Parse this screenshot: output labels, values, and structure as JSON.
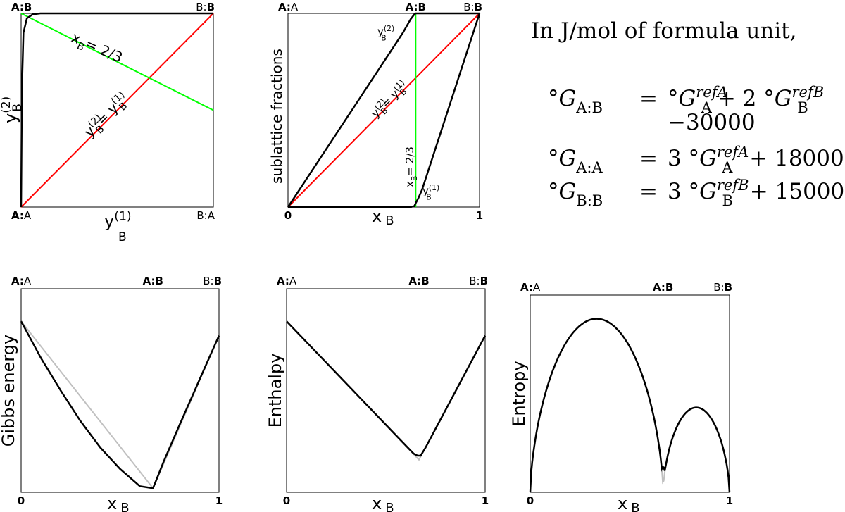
{
  "chart_data": [
    {
      "id": "site-fraction-square",
      "type": "line",
      "corner_labels": {
        "top_left": {
          "bold": "A:B",
          "normal": ""
        },
        "top_right": {
          "bold": "",
          "normal": "B:",
          "bold2": "B"
        },
        "bottom_left": {
          "bold": "A:",
          "normal": "A"
        },
        "bottom_right": {
          "bold": "",
          "normal": "B:A"
        }
      },
      "xlabel": {
        "main": "y",
        "sup": "(1)",
        "sub": "B"
      },
      "ylabel": {
        "main": "y",
        "sup": "(2)",
        "sub": "B"
      },
      "xlim": [
        0,
        1
      ],
      "ylim": [
        0,
        1
      ],
      "series": [
        {
          "color": "#ff0000",
          "x": [
            0,
            1
          ],
          "y": [
            0,
            1
          ],
          "label": {
            "main": "y",
            "sup1": "(2)",
            "sub1": "B",
            "eq": "= y",
            "sup2": "(1)",
            "sub2": "B"
          }
        },
        {
          "color": "#00ff00",
          "x": [
            0,
            1
          ],
          "y": [
            1,
            0.5
          ],
          "label": {
            "main": "x",
            "sub": "B",
            "eq": "= 2/3"
          }
        },
        {
          "color": "#000000",
          "x": [
            0,
            0.004,
            0.012,
            0.03,
            0.06,
            0.1,
            1
          ],
          "y": [
            0,
            0.6,
            0.9,
            0.975,
            0.995,
            1,
            1
          ]
        }
      ]
    },
    {
      "id": "sublattice-fractions",
      "type": "line",
      "top_labels": [
        {
          "x": 0,
          "bold": "A:",
          "normal": "A"
        },
        {
          "x": 0.6667,
          "bold": "A:B",
          "normal": ""
        },
        {
          "x": 1,
          "normal": "B:",
          "bold": "B"
        }
      ],
      "ylabel": "sublattice fractions",
      "xlabel": {
        "main": "x",
        "sub": "B"
      },
      "xticks": [
        "0",
        "1"
      ],
      "xlim": [
        0,
        1
      ],
      "ylim": [
        0,
        1
      ],
      "series": [
        {
          "color": "#ff0000",
          "x": [
            0,
            1
          ],
          "y": [
            0,
            1
          ],
          "label": {
            "main": "y",
            "sup1": "(2)",
            "sub1": "B",
            "eq": "= y",
            "sup2": "(1)",
            "sub2": "B"
          }
        },
        {
          "color": "#00ff00",
          "x": [
            0.6667,
            0.6667
          ],
          "y": [
            0,
            1
          ],
          "label": {
            "main": "x",
            "sub": "B",
            "eq": "= 2/3"
          }
        },
        {
          "color": "#000000",
          "name": {
            "main": "y",
            "sup": "(2)",
            "sub": "B"
          },
          "x": [
            0,
            0.6,
            0.64,
            0.66,
            0.6667,
            0.68,
            0.72,
            1
          ],
          "y": [
            0,
            0.9,
            0.97,
            0.995,
            1,
            1,
            1,
            1
          ]
        },
        {
          "color": "#000000",
          "name": {
            "main": "y",
            "sup": "(1)",
            "sub": "B"
          },
          "x": [
            0,
            0.6,
            0.64,
            0.66,
            0.6667,
            0.68,
            0.7,
            1
          ],
          "y": [
            0,
            0,
            0,
            0.005,
            0.02,
            0.045,
            0.09,
            1
          ]
        }
      ]
    },
    {
      "id": "gibbs-energy",
      "type": "line",
      "top_labels": [
        {
          "x": 0,
          "bold": "A:",
          "normal": "A"
        },
        {
          "x": 0.6667,
          "bold": "A:B",
          "normal": ""
        },
        {
          "x": 1,
          "normal": "B:",
          "bold": "B"
        }
      ],
      "ylabel": "Gibbs energy",
      "xlabel": {
        "main": "x",
        "sub": "B"
      },
      "xticks": [
        "0",
        "1"
      ],
      "xlim": [
        0,
        1
      ],
      "ylim": [
        0,
        1
      ],
      "series": [
        {
          "color": "#c0c0c0",
          "x": [
            0,
            0.6667,
            1
          ],
          "y": [
            0.84,
            0.02,
            0.77
          ]
        },
        {
          "color": "#000000",
          "x": [
            0,
            0.1,
            0.2,
            0.3,
            0.4,
            0.5,
            0.6,
            0.6667,
            0.72,
            0.8,
            0.9,
            1
          ],
          "y": [
            0.84,
            0.66,
            0.5,
            0.35,
            0.22,
            0.115,
            0.03,
            0.02,
            0.15,
            0.33,
            0.55,
            0.77
          ]
        }
      ]
    },
    {
      "id": "enthalpy",
      "type": "line",
      "top_labels": [
        {
          "x": 0,
          "bold": "A:",
          "normal": "A"
        },
        {
          "x": 0.6667,
          "bold": "A:B",
          "normal": ""
        },
        {
          "x": 1,
          "normal": "B:",
          "bold": "B"
        }
      ],
      "ylabel": "Enthalpy",
      "xlabel": {
        "main": "x",
        "sub": "B"
      },
      "xticks": [
        "0",
        "1"
      ],
      "xlim": [
        0,
        1
      ],
      "ylim": [
        0,
        1
      ],
      "series": [
        {
          "color": "#c0c0c0",
          "x": [
            0,
            0.6667,
            1
          ],
          "y": [
            0.84,
            0.16,
            0.77
          ]
        },
        {
          "color": "#000000",
          "x": [
            0,
            0.6,
            0.64,
            0.66,
            0.675,
            0.7,
            1
          ],
          "y": [
            0.84,
            0.23,
            0.19,
            0.18,
            0.18,
            0.22,
            0.77
          ]
        }
      ]
    },
    {
      "id": "entropy",
      "type": "line",
      "top_labels": [
        {
          "x": 0,
          "bold": "A:",
          "normal": "A"
        },
        {
          "x": 0.6667,
          "bold": "A:B",
          "normal": ""
        },
        {
          "x": 1,
          "normal": "B:",
          "bold": "B"
        }
      ],
      "ylabel": "Entropy",
      "xlabel": {
        "main": "x",
        "sub": "B"
      },
      "xticks": [
        "0",
        "1"
      ],
      "xlim": [
        0,
        1
      ],
      "ylim": [
        0,
        1
      ],
      "series": [
        {
          "color": "#c0c0c0",
          "x": [
            0,
            0.6667,
            1
          ],
          "model": "twin-arch",
          "peaks": [
            0.88,
            0.43
          ],
          "floor": 0
        },
        {
          "color": "#000000",
          "x": [
            0,
            0.6667,
            1
          ],
          "model": "twin-arch",
          "peaks": [
            0.88,
            0.43
          ],
          "floor": 0.13
        }
      ]
    }
  ],
  "equations": {
    "intro": "In J/mol of formula unit,",
    "rows": [
      {
        "lhs_sub": "A:B",
        "rhs": [
          {
            "pre": "",
            "sup": "refA",
            "sub": "A"
          },
          {
            "pre": "+ 2 ",
            "sup": "refB",
            "sub": "B"
          }
        ]
      },
      {
        "continuation": "−30000"
      },
      {
        "lhs_sub": "A:A",
        "rhs": [
          {
            "pre": "3 ",
            "sup": "refA",
            "sub": "A"
          }
        ],
        "tail": "+ 18000"
      },
      {
        "lhs_sub": "B:B",
        "rhs": [
          {
            "pre": "3 ",
            "sup": "refB",
            "sub": "B"
          }
        ],
        "tail": "+ 15000"
      }
    ],
    "equals": "=",
    "degree": "°",
    "symbol": "G"
  }
}
